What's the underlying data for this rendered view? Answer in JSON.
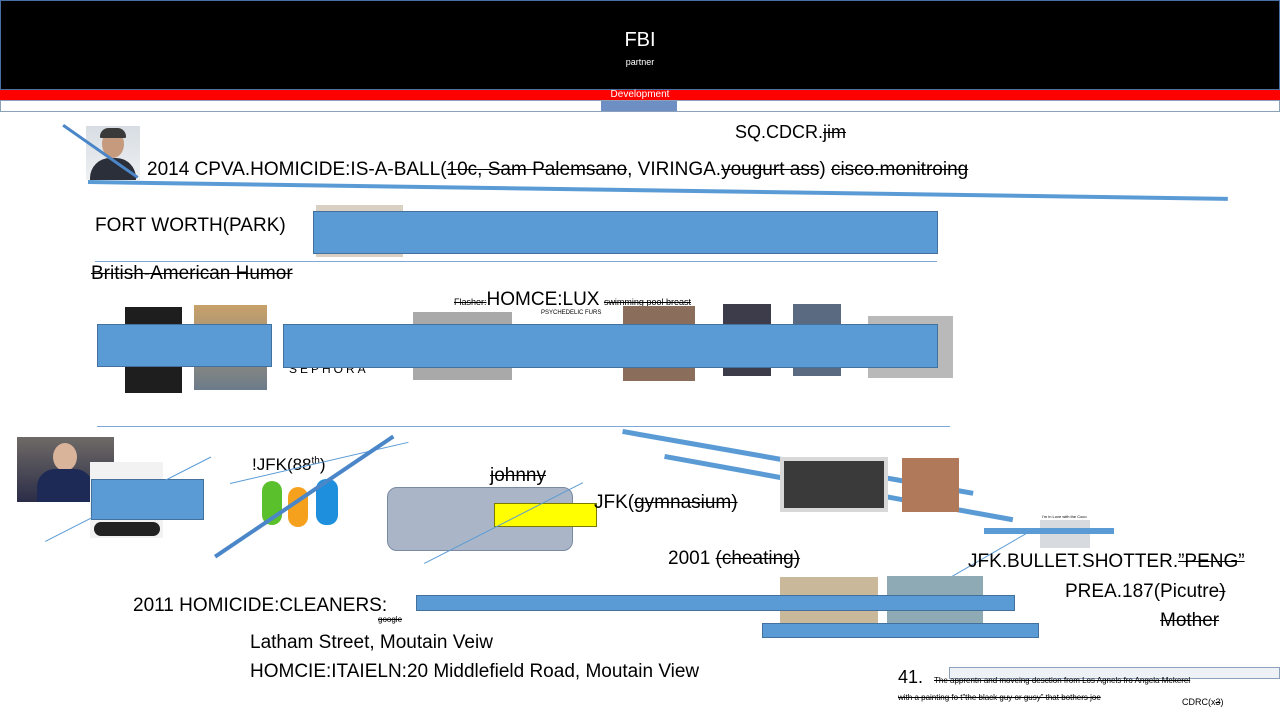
{
  "header": {
    "title": "FBI",
    "subtitle": "partner"
  },
  "bars": {
    "red_label": "Development"
  },
  "row1": {
    "sq": "SQ.CDCR.",
    "sq_strike": "jim",
    "line_a": "2014 CPVA.HOMICIDE:IS-A-BALL(",
    "line_a_strike1": "10c, Sam Palemsano",
    "line_a_mid": ", VIRINGA.",
    "line_a_strike2": "yougurt ass",
    "line_a_end": ") ",
    "line_a_strike3": "cisco.monitroing"
  },
  "row2": {
    "fort_worth": "FORT WORTH(PARK)",
    "humor": "British-American Humor"
  },
  "row3": {
    "flasher": "Flasher:",
    "homce": "HOMCE:LUX",
    "pool": "swimming pool breast",
    "sephora": "SEPHORA",
    "psych": "PSYCHEDELIC FURS"
  },
  "row4": {
    "jfk88": "!JFK(88",
    "jfk88_sup": "th",
    "jfk88_end": ")",
    "johnny": "johnny",
    "jfk_gym_prefix": "JFK(",
    "jfk_gym": "gymnasium)",
    "y2001": "2001 ",
    "cheating": "(cheating)",
    "shotter": "JFK.BULLET.SHOTTER.",
    "peng": "”PENG”",
    "prea_a": "PREA.187(Picutre",
    "prea_b": ")",
    "mother": "Mother",
    "tiny_caption": "I'm in Love with the Coco"
  },
  "row5": {
    "cleaners": "2011 HOMICIDE:CLEANERS:",
    "google": "google",
    "latham": "Latham Street, Moutain Veiw",
    "itaieln": "HOMCIE:ITAIELN:20 Middlefield Road, Moutain View",
    "n41": "41.",
    "note1": "The apprentn and moveing desction from Los Agnels fro Angela Mekerel",
    "note2": "with a painting fo t”the black guy or gusy” that bothers joe",
    "cdrc": "CDRC(x",
    "cdrc_strike": "3",
    "cdrc_end": ")"
  },
  "colors": {
    "accent_blue": "#5b9bd5",
    "header_bg": "#000000",
    "alert_red": "#ff0000",
    "highlight_yellow": "#ffff00"
  }
}
